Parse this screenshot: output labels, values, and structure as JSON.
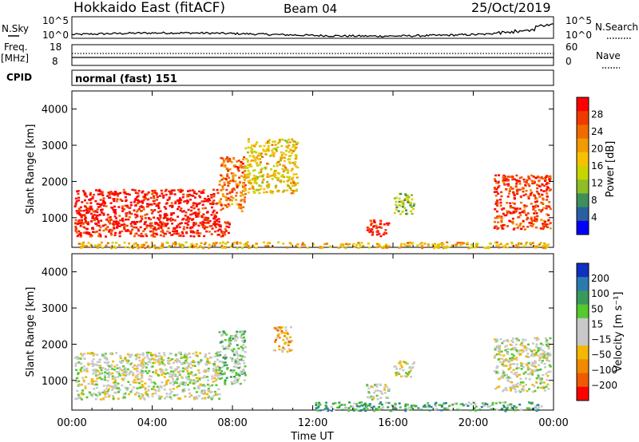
{
  "header": {
    "title": "Hokkaido East (fitACF)",
    "beam": "Beam 04",
    "date": "25/Oct/2019"
  },
  "noise_panel": {
    "left_label": "N.Sky",
    "right_label": "N.Search",
    "ticks_left": [
      "10^5",
      "10^0"
    ],
    "ticks_right": [
      "10^5",
      "10^0"
    ]
  },
  "freq_panel": {
    "left_label": "Freq.",
    "unit": "[MHz]",
    "ticks_left": [
      "18",
      "8"
    ],
    "ticks_right": [
      "60",
      "0"
    ],
    "right_label": "Nave"
  },
  "cpid_panel": {
    "label": "CPID",
    "mode": "normal (fast) 151"
  },
  "chart_data": [
    {
      "type": "heatmap",
      "name": "power",
      "ylabel": "Slant Range [km]",
      "yticks": [
        1000,
        2000,
        3000,
        4000
      ],
      "ylim": [
        180,
        4500
      ],
      "xlim": [
        0,
        24
      ],
      "xticks": [
        0,
        4,
        8,
        12,
        16,
        20,
        24
      ],
      "colorbar_label": "Power [dB]",
      "colorbar_ticks": [
        "28",
        "24",
        "20",
        "16",
        "12",
        "8",
        "4"
      ],
      "colorbar_colors": [
        "#ff0000",
        "#f03a00",
        "#f06a00",
        "#f39a00",
        "#f5c200",
        "#c8d400",
        "#8cbf26",
        "#3e8f5a",
        "#2a5fa0",
        "#0000ff"
      ],
      "regions": [
        {
          "t0": 0.1,
          "t1": 7.3,
          "r0": 800,
          "r1": 1800,
          "level": 0.95
        },
        {
          "t0": 0.1,
          "t1": 7.8,
          "r0": 500,
          "r1": 900,
          "level": 0.9
        },
        {
          "t0": 7.3,
          "t1": 8.6,
          "r0": 1200,
          "r1": 2700,
          "level": 0.75
        },
        {
          "t0": 8.6,
          "t1": 11.2,
          "r0": 1700,
          "r1": 3200,
          "level": 0.55
        },
        {
          "t0": 14.6,
          "t1": 15.8,
          "r0": 500,
          "r1": 950,
          "level": 0.95
        },
        {
          "t0": 16.0,
          "t1": 17.0,
          "r0": 1100,
          "r1": 1700,
          "level": 0.4
        },
        {
          "t0": 21.0,
          "t1": 23.8,
          "r0": 700,
          "r1": 2200,
          "level": 0.85
        },
        {
          "t0": 0.2,
          "t1": 23.8,
          "r0": 180,
          "r1": 350,
          "level": 0.6
        }
      ]
    },
    {
      "type": "heatmap",
      "name": "velocity",
      "ylabel": "Slant Range [km]",
      "yticks": [
        1000,
        2000,
        3000,
        4000
      ],
      "ylim": [
        180,
        4500
      ],
      "xlim": [
        0,
        24
      ],
      "xticks": [
        0,
        4,
        8,
        12,
        16,
        20,
        24
      ],
      "xticklabels": [
        "00:00",
        "04:00",
        "08:00",
        "12:00",
        "16:00",
        "20:00",
        "00:00"
      ],
      "xlabel": "Time UT",
      "colorbar_label": "Velocity [m s⁻¹]",
      "colorbar_ticks": [
        "200",
        "100",
        "50",
        "15",
        "−15",
        "−50",
        "−100",
        "−200"
      ],
      "colorbar_colors": [
        "#1030c0",
        "#2a7ab0",
        "#3a9a5a",
        "#56c830",
        "#c8c8c8",
        "#c8c8c8",
        "#f5b800",
        "#f08a00",
        "#f05a00",
        "#ff0000"
      ],
      "regions": [
        {
          "t0": 0.1,
          "t1": 7.3,
          "r0": 500,
          "r1": 1800,
          "level": 0.5
        },
        {
          "t0": 7.3,
          "t1": 8.6,
          "r0": 900,
          "r1": 2400,
          "level": 0.6
        },
        {
          "t0": 10.0,
          "t1": 10.9,
          "r0": 1800,
          "r1": 2500,
          "level": 0.35
        },
        {
          "t0": 14.6,
          "t1": 15.8,
          "r0": 500,
          "r1": 950,
          "level": 0.5
        },
        {
          "t0": 16.0,
          "t1": 17.0,
          "r0": 1100,
          "r1": 1600,
          "level": 0.5
        },
        {
          "t0": 21.0,
          "t1": 23.8,
          "r0": 700,
          "r1": 2200,
          "level": 0.5
        },
        {
          "t0": 12.0,
          "t1": 23.5,
          "r0": 180,
          "r1": 420,
          "level": 0.7
        }
      ]
    }
  ]
}
